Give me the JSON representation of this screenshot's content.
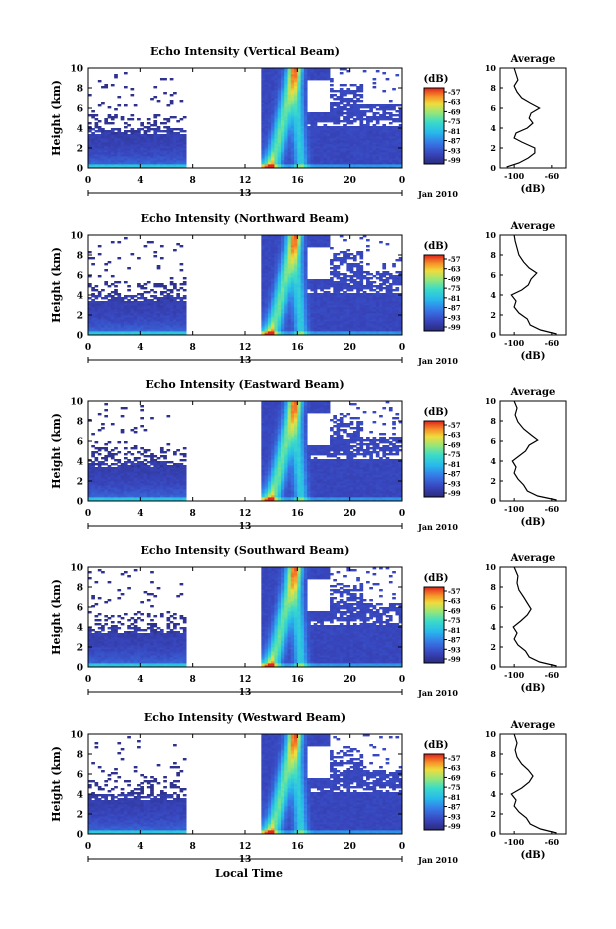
{
  "figure": {
    "bottom_label": "Local Time",
    "date_label": "Jan 2010",
    "day_label": "13"
  },
  "chart_data": [
    {
      "type": "heatmap",
      "title": "Echo Intensity (Vertical Beam)",
      "ylabel": "Height (km)",
      "xlabel": "Local Time",
      "x_ticks": [
        "0",
        "4",
        "8",
        "12",
        "16",
        "20",
        "0"
      ],
      "y_ticks": [
        "0",
        "2",
        "4",
        "6",
        "8",
        "10"
      ],
      "xlim": [
        0,
        24
      ],
      "ylim": [
        0,
        10
      ],
      "colorbar": {
        "unit": "(dB)",
        "ticks": [
          "-57",
          "-63",
          "-69",
          "-75",
          "-81",
          "-87",
          "-93",
          "-99"
        ]
      },
      "average": {
        "title": "Average",
        "xlabel": "(dB)",
        "x_ticks": [
          "-100",
          "-60"
        ],
        "xlim": [
          -115,
          -45
        ],
        "profile": [
          [
            -108,
            0.1
          ],
          [
            -95,
            0.5
          ],
          [
            -85,
            1.0
          ],
          [
            -78,
            1.5
          ],
          [
            -78,
            2.0
          ],
          [
            -92,
            2.6
          ],
          [
            -100,
            3.0
          ],
          [
            -98,
            3.5
          ],
          [
            -86,
            4.0
          ],
          [
            -80,
            4.5
          ],
          [
            -84,
            5.0
          ],
          [
            -82,
            5.5
          ],
          [
            -73,
            6.0
          ],
          [
            -83,
            6.5
          ],
          [
            -92,
            7.0
          ],
          [
            -97,
            7.6
          ],
          [
            -100,
            8.2
          ],
          [
            -96,
            8.8
          ],
          [
            -98,
            9.4
          ],
          [
            -100,
            10.0
          ]
        ]
      }
    },
    {
      "type": "heatmap",
      "title": "Echo Intensity (Northward Beam)",
      "ylabel": "Height (km)",
      "xlabel": "Local Time",
      "x_ticks": [
        "0",
        "4",
        "8",
        "12",
        "16",
        "20",
        "0"
      ],
      "y_ticks": [
        "0",
        "2",
        "4",
        "6",
        "8",
        "10"
      ],
      "xlim": [
        0,
        24
      ],
      "ylim": [
        0,
        10
      ],
      "colorbar": {
        "unit": "(dB)",
        "ticks": [
          "-57",
          "-63",
          "-69",
          "-75",
          "-81",
          "-87",
          "-93",
          "-99"
        ]
      },
      "average": {
        "title": "Average",
        "xlabel": "(dB)",
        "x_ticks": [
          "-100",
          "-60"
        ],
        "xlim": [
          -115,
          -45
        ],
        "profile": [
          [
            -55,
            0.1
          ],
          [
            -72,
            0.5
          ],
          [
            -83,
            1.0
          ],
          [
            -86,
            1.6
          ],
          [
            -95,
            2.2
          ],
          [
            -100,
            2.8
          ],
          [
            -98,
            3.4
          ],
          [
            -103,
            4.0
          ],
          [
            -92,
            4.5
          ],
          [
            -85,
            5.0
          ],
          [
            -82,
            5.6
          ],
          [
            -76,
            6.2
          ],
          [
            -84,
            6.7
          ],
          [
            -90,
            7.3
          ],
          [
            -95,
            8.0
          ],
          [
            -97,
            8.7
          ],
          [
            -99,
            9.4
          ],
          [
            -100,
            10.0
          ]
        ]
      }
    },
    {
      "type": "heatmap",
      "title": "Echo Intensity (Eastward Beam)",
      "ylabel": "Height (km)",
      "xlabel": "Local Time",
      "x_ticks": [
        "0",
        "4",
        "8",
        "12",
        "16",
        "20",
        "0"
      ],
      "y_ticks": [
        "0",
        "2",
        "4",
        "6",
        "8",
        "10"
      ],
      "xlim": [
        0,
        24
      ],
      "ylim": [
        0,
        10
      ],
      "colorbar": {
        "unit": "(dB)",
        "ticks": [
          "-57",
          "-63",
          "-69",
          "-75",
          "-81",
          "-87",
          "-93",
          "-99"
        ]
      },
      "average": {
        "title": "Average",
        "xlabel": "(dB)",
        "x_ticks": [
          "-100",
          "-60"
        ],
        "xlim": [
          -115,
          -45
        ],
        "profile": [
          [
            -55,
            0.1
          ],
          [
            -75,
            0.5
          ],
          [
            -86,
            1.0
          ],
          [
            -90,
            1.6
          ],
          [
            -96,
            2.2
          ],
          [
            -100,
            2.8
          ],
          [
            -98,
            3.4
          ],
          [
            -102,
            4.0
          ],
          [
            -95,
            4.5
          ],
          [
            -88,
            5.0
          ],
          [
            -84,
            5.6
          ],
          [
            -75,
            6.1
          ],
          [
            -82,
            6.6
          ],
          [
            -90,
            7.2
          ],
          [
            -96,
            7.9
          ],
          [
            -99,
            8.6
          ],
          [
            -97,
            9.3
          ],
          [
            -100,
            10.0
          ]
        ]
      }
    },
    {
      "type": "heatmap",
      "title": "Echo Intensity (Southward Beam)",
      "ylabel": "Height (km)",
      "xlabel": "Local Time",
      "x_ticks": [
        "0",
        "4",
        "8",
        "12",
        "16",
        "20",
        "0"
      ],
      "y_ticks": [
        "0",
        "2",
        "4",
        "6",
        "8",
        "10"
      ],
      "xlim": [
        0,
        24
      ],
      "ylim": [
        0,
        10
      ],
      "colorbar": {
        "unit": "(dB)",
        "ticks": [
          "-57",
          "-63",
          "-69",
          "-75",
          "-81",
          "-87",
          "-93",
          "-99"
        ]
      },
      "average": {
        "title": "Average",
        "xlabel": "(dB)",
        "x_ticks": [
          "-100",
          "-60"
        ],
        "xlim": [
          -115,
          -45
        ],
        "profile": [
          [
            -55,
            0.1
          ],
          [
            -73,
            0.5
          ],
          [
            -84,
            1.0
          ],
          [
            -88,
            1.6
          ],
          [
            -96,
            2.2
          ],
          [
            -100,
            2.8
          ],
          [
            -97,
            3.4
          ],
          [
            -101,
            4.0
          ],
          [
            -93,
            4.6
          ],
          [
            -86,
            5.2
          ],
          [
            -82,
            5.8
          ],
          [
            -86,
            6.4
          ],
          [
            -90,
            7.0
          ],
          [
            -95,
            7.7
          ],
          [
            -97,
            8.4
          ],
          [
            -96,
            9.1
          ],
          [
            -100,
            10.0
          ]
        ]
      }
    },
    {
      "type": "heatmap",
      "title": "Echo Intensity (Westward Beam)",
      "ylabel": "Height (km)",
      "xlabel": "Local Time",
      "x_ticks": [
        "0",
        "4",
        "8",
        "12",
        "16",
        "20",
        "0"
      ],
      "y_ticks": [
        "0",
        "2",
        "4",
        "6",
        "8",
        "10"
      ],
      "xlim": [
        0,
        24
      ],
      "ylim": [
        0,
        10
      ],
      "colorbar": {
        "unit": "(dB)",
        "ticks": [
          "-57",
          "-63",
          "-69",
          "-75",
          "-81",
          "-87",
          "-93",
          "-99"
        ]
      },
      "average": {
        "title": "Average",
        "xlabel": "(dB)",
        "x_ticks": [
          "-100",
          "-60"
        ],
        "xlim": [
          -115,
          -45
        ],
        "profile": [
          [
            -55,
            0.1
          ],
          [
            -72,
            0.5
          ],
          [
            -83,
            1.0
          ],
          [
            -87,
            1.6
          ],
          [
            -95,
            2.2
          ],
          [
            -100,
            2.8
          ],
          [
            -98,
            3.4
          ],
          [
            -103,
            4.0
          ],
          [
            -92,
            4.6
          ],
          [
            -84,
            5.2
          ],
          [
            -80,
            5.8
          ],
          [
            -85,
            6.4
          ],
          [
            -92,
            7.0
          ],
          [
            -97,
            7.7
          ],
          [
            -99,
            8.4
          ],
          [
            -97,
            9.1
          ],
          [
            -100,
            10.0
          ]
        ]
      }
    }
  ]
}
